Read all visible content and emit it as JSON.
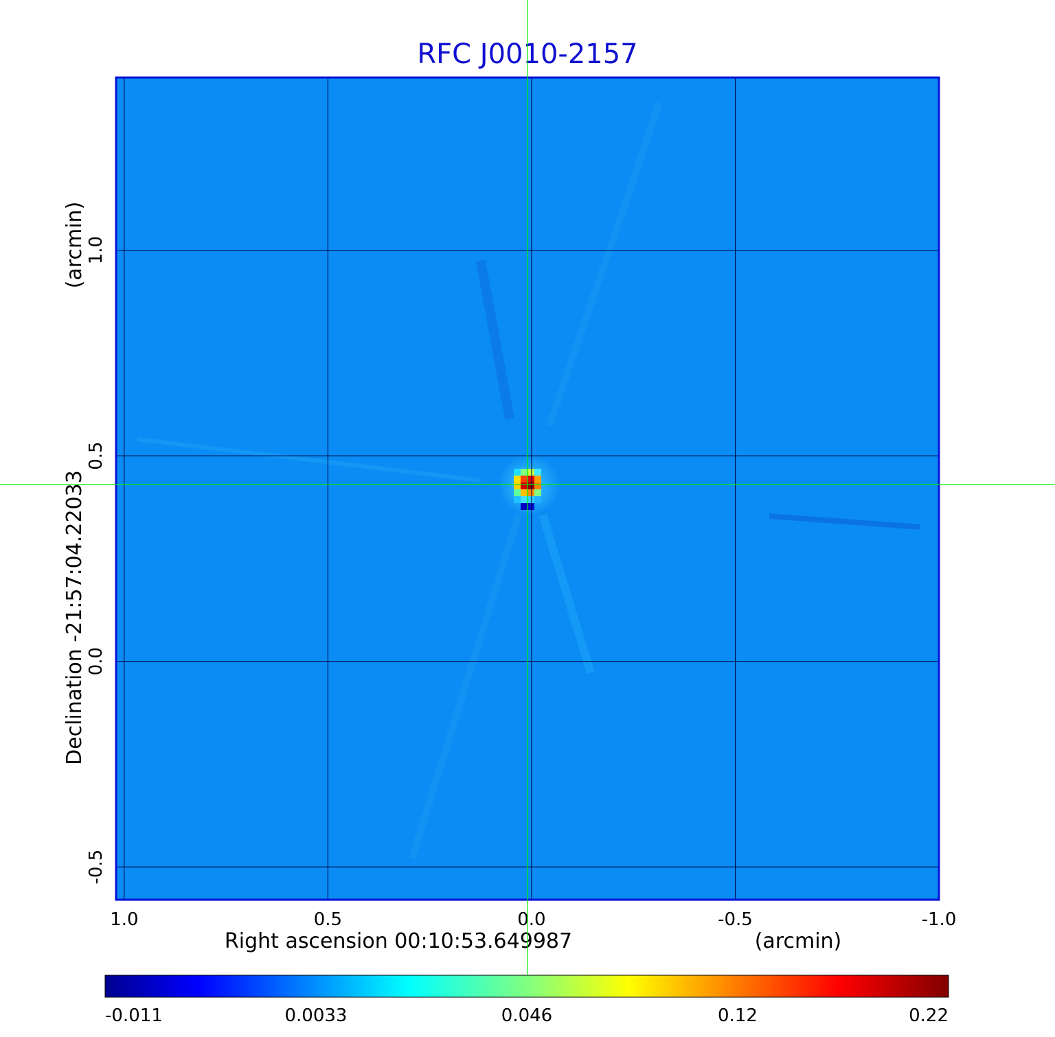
{
  "chart_data": {
    "type": "heatmap",
    "title": "RFC J0010-2157",
    "xlabel": "Right ascension  00:10:53.649987",
    "xunit": "(arcmin)",
    "ylabel": "Declination  -21:57:04.22033",
    "yunit": "(arcmin)",
    "xlim": [
      1.02,
      -1.0
    ],
    "ylim": [
      -0.58,
      1.42
    ],
    "grid": true,
    "x_ticks": [
      {
        "value": 1.0,
        "label": "1.0"
      },
      {
        "value": 0.5,
        "label": "0.5"
      },
      {
        "value": 0.0,
        "label": "0.0"
      },
      {
        "value": -0.5,
        "label": "-0.5"
      },
      {
        "value": -1.0,
        "label": "-1.0"
      }
    ],
    "y_ticks": [
      {
        "value": 1.0,
        "label": "1.0"
      },
      {
        "value": 0.5,
        "label": "0.5"
      },
      {
        "value": 0.0,
        "label": "0.0"
      },
      {
        "value": -0.5,
        "label": "-0.5"
      }
    ],
    "crosshair": {
      "x": 0.01,
      "y": 0.43
    },
    "colorbar": {
      "colormap": "jet",
      "tick_labels": [
        "-0.011",
        "0.0033",
        "0.046",
        "0.12",
        "0.22"
      ]
    },
    "source": {
      "x": 0.01,
      "y": 0.435,
      "peak": 0.22
    }
  },
  "colors": {
    "title": "#1010d0",
    "grid": "#000040",
    "frame": "#0010d8",
    "crosshair": "#00ee00",
    "background_field": "#0a8cf4"
  }
}
